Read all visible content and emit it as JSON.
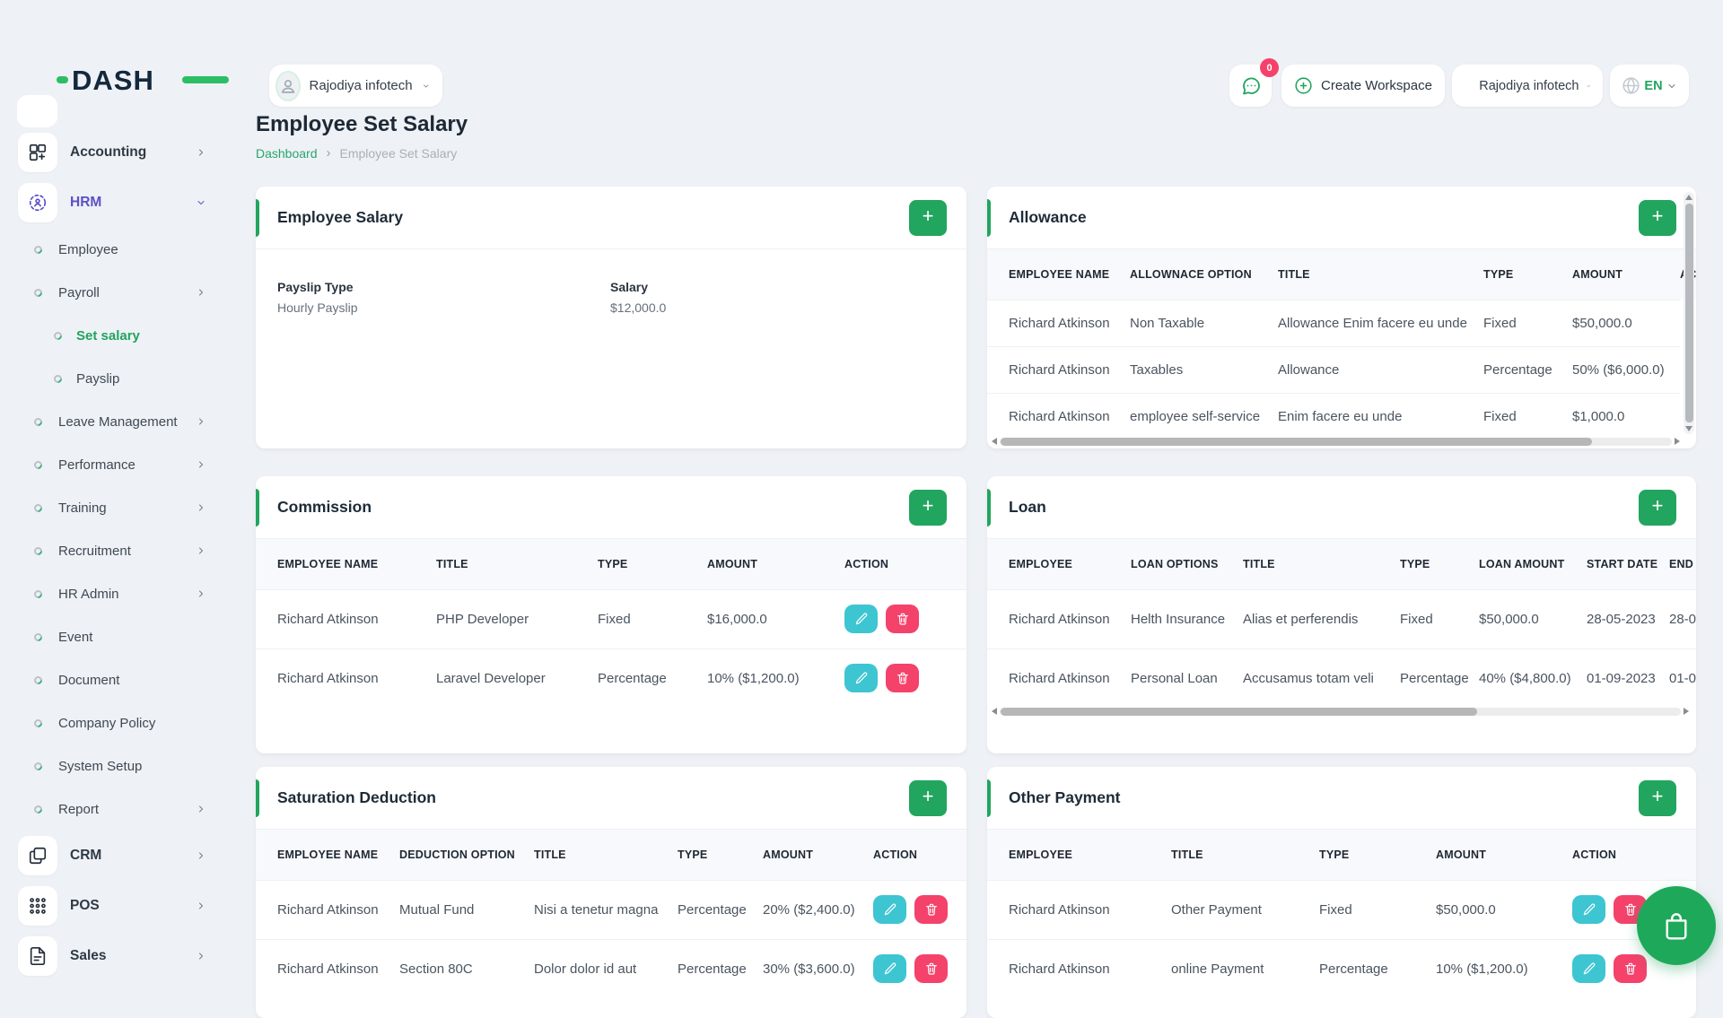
{
  "brand": {
    "name": "DASH"
  },
  "topbar": {
    "company_dropdown": "Rajodiya infotech",
    "messages_badge": "0",
    "create_workspace_label": "Create Workspace",
    "workspace_dropdown": "Rajodiya infotech",
    "language": "EN"
  },
  "page": {
    "title": "Employee Set Salary",
    "breadcrumb": {
      "home": "Dashboard",
      "current": "Employee Set Salary"
    }
  },
  "sidebar": {
    "items": [
      {
        "type": "section",
        "icon": "grid-plus-icon",
        "label": "Accounting",
        "chevron": "right",
        "active": false
      },
      {
        "type": "section",
        "icon": "hrm-icon",
        "label": "HRM",
        "chevron": "down",
        "active": true
      },
      {
        "type": "item",
        "label": "Employee",
        "chevron": null,
        "active": false
      },
      {
        "type": "item",
        "label": "Payroll",
        "chevron": "right",
        "active": false
      },
      {
        "type": "subitem",
        "label": "Set salary",
        "chevron": null,
        "active": true
      },
      {
        "type": "subitem",
        "label": "Payslip",
        "chevron": null,
        "active": false
      },
      {
        "type": "item",
        "label": "Leave Management",
        "chevron": "right",
        "active": false
      },
      {
        "type": "item",
        "label": "Performance",
        "chevron": "right",
        "active": false
      },
      {
        "type": "item",
        "label": "Training",
        "chevron": "right",
        "active": false
      },
      {
        "type": "item",
        "label": "Recruitment",
        "chevron": "right",
        "active": false
      },
      {
        "type": "item",
        "label": "HR Admin",
        "chevron": "right",
        "active": false
      },
      {
        "type": "item",
        "label": "Event",
        "chevron": null,
        "active": false
      },
      {
        "type": "item",
        "label": "Document",
        "chevron": null,
        "active": false
      },
      {
        "type": "item",
        "label": "Company Policy",
        "chevron": null,
        "active": false
      },
      {
        "type": "item",
        "label": "System Setup",
        "chevron": null,
        "active": false
      },
      {
        "type": "item",
        "label": "Report",
        "chevron": "right",
        "active": false
      },
      {
        "type": "section",
        "icon": "crm-icon",
        "label": "CRM",
        "chevron": "right",
        "active": false
      },
      {
        "type": "section",
        "icon": "pos-icon",
        "label": "POS",
        "chevron": "right",
        "active": false
      },
      {
        "type": "section",
        "icon": "sales-icon",
        "label": "Sales",
        "chevron": "right",
        "active": false
      }
    ]
  },
  "cards": {
    "employee_salary": {
      "title": "Employee Salary",
      "add_button": "+",
      "fields": [
        {
          "label": "Payslip Type",
          "value": "Hourly Payslip"
        },
        {
          "label": "Salary",
          "value": "$12,000.0"
        }
      ]
    },
    "allowance": {
      "title": "Allowance",
      "add_button": "+",
      "columns": [
        "EMPLOYEE NAME",
        "ALLOWNACE OPTION",
        "TITLE",
        "TYPE",
        "AMOUNT",
        "ACTION"
      ],
      "rows": [
        {
          "cells": [
            "Richard Atkinson",
            "Non Taxable",
            "Allowance Enim facere eu unde",
            "Fixed",
            "$50,000.0"
          ],
          "actions": false
        },
        {
          "cells": [
            "Richard Atkinson",
            "Taxables",
            "Allowance",
            "Percentage",
            "50% ($6,000.0)"
          ],
          "actions": false
        },
        {
          "cells": [
            "Richard Atkinson",
            "employee self-service",
            "Enim facere eu unde",
            "Fixed",
            "$1,000.0"
          ],
          "actions": false
        }
      ]
    },
    "commission": {
      "title": "Commission",
      "add_button": "+",
      "columns": [
        "EMPLOYEE NAME",
        "TITLE",
        "TYPE",
        "AMOUNT",
        "ACTION"
      ],
      "rows": [
        {
          "cells": [
            "Richard Atkinson",
            "PHP Developer",
            "Fixed",
            "$16,000.0"
          ],
          "actions": true
        },
        {
          "cells": [
            "Richard Atkinson",
            "Laravel Developer",
            "Percentage",
            "10% ($1,200.0)"
          ],
          "actions": true
        }
      ]
    },
    "loan": {
      "title": "Loan",
      "add_button": "+",
      "columns": [
        "EMPLOYEE",
        "LOAN OPTIONS",
        "TITLE",
        "TYPE",
        "LOAN AMOUNT",
        "START DATE",
        "END DATE"
      ],
      "rows": [
        {
          "cells": [
            "Richard Atkinson",
            "Helth Insurance",
            "Alias et perferendis",
            "Fixed",
            "$50,000.0",
            "28-05-2023",
            "28-0"
          ],
          "actions": false
        },
        {
          "cells": [
            "Richard Atkinson",
            "Personal Loan",
            "Accusamus totam veli",
            "Percentage",
            "40% ($4,800.0)",
            "01-09-2023",
            "01-0"
          ],
          "actions": false
        }
      ]
    },
    "saturation_deduction": {
      "title": "Saturation Deduction",
      "add_button": "+",
      "columns": [
        "EMPLOYEE NAME",
        "DEDUCTION OPTION",
        "TITLE",
        "TYPE",
        "AMOUNT",
        "ACTION"
      ],
      "rows": [
        {
          "cells": [
            "Richard Atkinson",
            "Mutual Fund",
            "Nisi a tenetur magna",
            "Percentage",
            "20% ($2,400.0)"
          ],
          "actions": true
        },
        {
          "cells": [
            "Richard Atkinson",
            "Section 80C",
            "Dolor dolor id aut",
            "Percentage",
            "30% ($3,600.0)"
          ],
          "actions": true
        }
      ]
    },
    "other_payment": {
      "title": "Other Payment",
      "add_button": "+",
      "columns": [
        "EMPLOYEE",
        "TITLE",
        "TYPE",
        "AMOUNT",
        "ACTION"
      ],
      "rows": [
        {
          "cells": [
            "Richard Atkinson",
            "Other Payment",
            "Fixed",
            "$50,000.0"
          ],
          "actions": true
        },
        {
          "cells": [
            "Richard Atkinson",
            "online Payment",
            "Percentage",
            "10% ($1,200.0)"
          ],
          "actions": true
        }
      ]
    }
  },
  "floating_button": {
    "icon": "shopping-bag-icon"
  },
  "colors": {
    "green": "#22a55e",
    "teal": "#3dc5d2",
    "pink": "#f4426b",
    "purple": "#5a50c8"
  }
}
